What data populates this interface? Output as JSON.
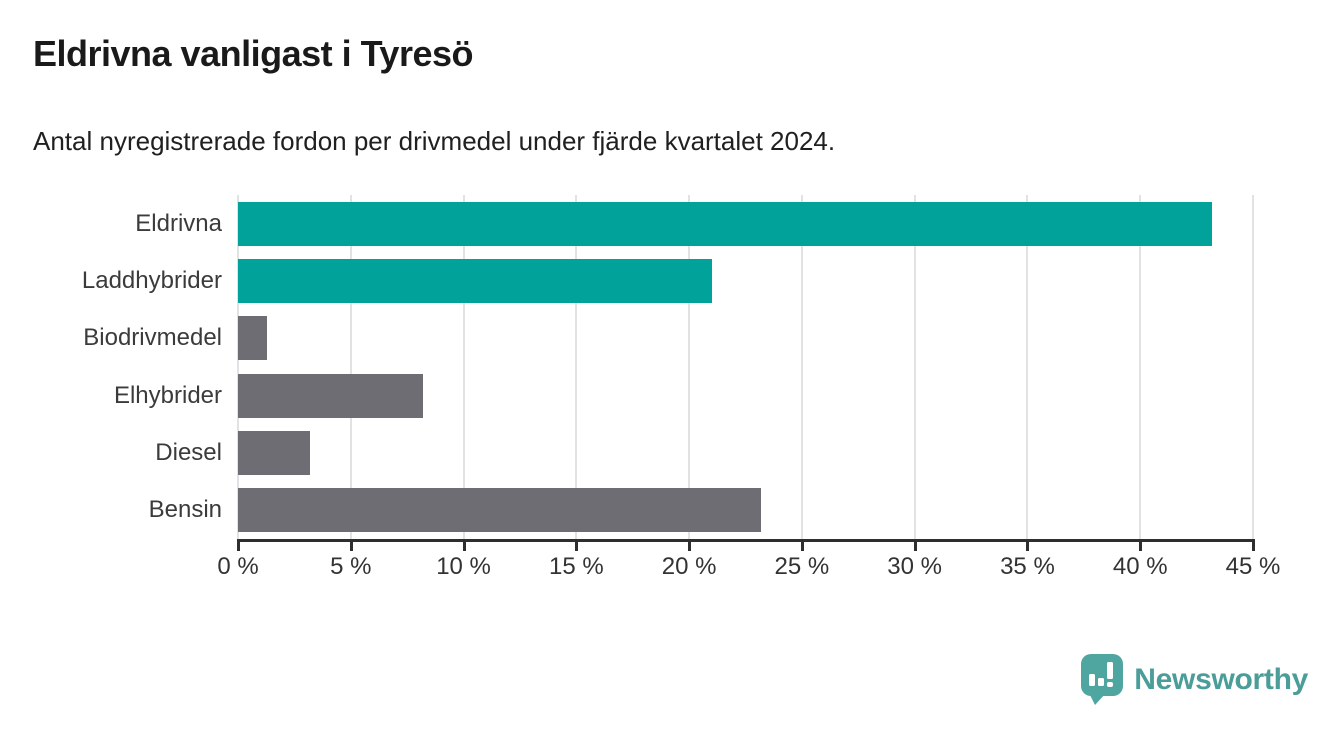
{
  "title": "Eldrivna vanligast i Tyresö",
  "subtitle": "Antal nyregistrerade fordon per drivmedel under fjärde kvartalet 2024.",
  "chart_data": {
    "type": "bar",
    "orientation": "horizontal",
    "title": "Eldrivna vanligast i Tyresö",
    "subtitle": "Antal nyregistrerade fordon per drivmedel under fjärde kvartalet 2024.",
    "categories": [
      "Eldrivna",
      "Laddhybrider",
      "Biodrivmedel",
      "Elhybrider",
      "Diesel",
      "Bensin"
    ],
    "values": [
      43.2,
      21.0,
      1.3,
      8.2,
      3.2,
      23.2
    ],
    "unit": "%",
    "bar_colors": [
      "#00a29a",
      "#00a29a",
      "#6e6d73",
      "#6e6d73",
      "#6e6d73",
      "#6e6d73"
    ],
    "xlim": [
      0,
      45
    ],
    "x_ticks": [
      0,
      5,
      10,
      15,
      20,
      25,
      30,
      35,
      40,
      45
    ],
    "x_tick_labels": [
      "0 %",
      "5 %",
      "10 %",
      "15 %",
      "20 %",
      "25 %",
      "30 %",
      "35 %",
      "40 %",
      "45 %"
    ],
    "grid": true,
    "legend": false
  },
  "colors": {
    "electric_bar": "#00a29a",
    "other_bar": "#6e6d73",
    "gridline": "#e2e2e2",
    "axis": "#2e2e2e",
    "logo_teal": "#4fa6a0",
    "brand_text": "#4a9d98"
  },
  "footer": {
    "brand": "Newsworthy"
  }
}
